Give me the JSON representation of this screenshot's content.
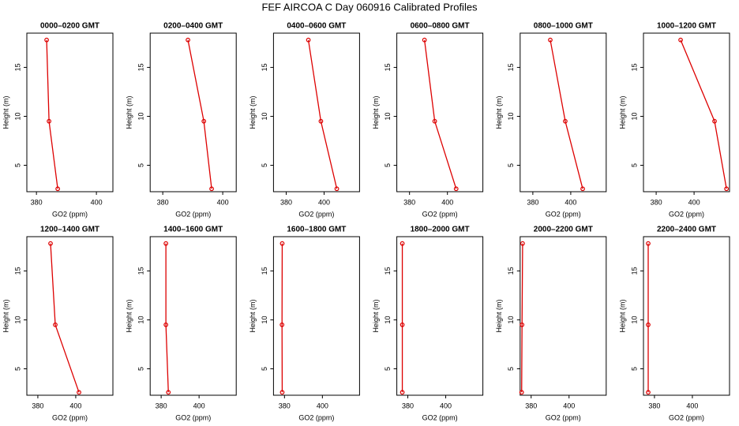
{
  "title": "FEF AIRCOA C  Day 060916  Calibrated Profiles",
  "chart_data": [
    {
      "type": "line",
      "title": "0000–0200 GMT",
      "xlabel": "GO2 (ppm)",
      "ylabel": "Height (m)",
      "x": [
        383.4,
        384.2,
        387.1
      ],
      "values": [
        17.8,
        9.5,
        2.6
      ],
      "color": "#dd0000",
      "xlim": [
        376.8,
        405.5
      ],
      "ylim": [
        2.3,
        18.5
      ],
      "xticks": [
        380,
        400
      ],
      "yticks": [
        5,
        10,
        15
      ]
    },
    {
      "type": "line",
      "title": "0200–0400 GMT",
      "xlabel": "GO2 (ppm)",
      "ylabel": "Height (m)",
      "x": [
        388.4,
        393.7,
        396.3
      ],
      "values": [
        17.8,
        9.5,
        2.6
      ],
      "color": "#dd0000",
      "xlim": [
        375.8,
        404.5
      ],
      "ylim": [
        2.3,
        18.5
      ],
      "xticks": [
        380,
        400
      ],
      "yticks": [
        5,
        10,
        15
      ]
    },
    {
      "type": "line",
      "title": "0400–0600 GMT",
      "xlabel": "GO2 (ppm)",
      "ylabel": "Height (m)",
      "x": [
        391.7,
        398.3,
        406.7
      ],
      "values": [
        17.8,
        9.5,
        2.6
      ],
      "color": "#dd0000",
      "xlim": [
        373.3,
        418.7
      ],
      "ylim": [
        2.3,
        18.5
      ],
      "xticks": [
        380,
        400
      ],
      "yticks": [
        5,
        10,
        15
      ]
    },
    {
      "type": "line",
      "title": "0600–0800 GMT",
      "xlabel": "GO2 (ppm)",
      "ylabel": "Height (m)",
      "x": [
        387.9,
        393.3,
        404.6
      ],
      "values": [
        17.8,
        9.5,
        2.6
      ],
      "color": "#dd0000",
      "xlim": [
        373.3,
        418.7
      ],
      "ylim": [
        2.3,
        18.5
      ],
      "xticks": [
        380,
        400
      ],
      "yticks": [
        5,
        10,
        15
      ]
    },
    {
      "type": "line",
      "title": "0800–1000 GMT",
      "xlabel": "GO2 (ppm)",
      "ylabel": "Height (m)",
      "x": [
        389.2,
        397.1,
        406.3
      ],
      "values": [
        17.8,
        9.5,
        2.6
      ],
      "color": "#dd0000",
      "xlim": [
        373.3,
        418.7
      ],
      "ylim": [
        2.3,
        18.5
      ],
      "xticks": [
        380,
        400
      ],
      "yticks": [
        5,
        10,
        15
      ]
    },
    {
      "type": "line",
      "title": "1000–1200 GMT",
      "xlabel": "GO2 (ppm)",
      "ylabel": "Height (m)",
      "x": [
        392.9,
        410.8,
        417.1
      ],
      "values": [
        17.8,
        9.5,
        2.6
      ],
      "color": "#dd0000",
      "xlim": [
        373.3,
        418.7
      ],
      "ylim": [
        2.3,
        18.5
      ],
      "xticks": [
        380,
        400
      ],
      "yticks": [
        5,
        10,
        15
      ]
    },
    {
      "type": "line",
      "title": "1200–1400 GMT",
      "xlabel": "GO2 (ppm)",
      "ylabel": "Height (m)",
      "x": [
        386.7,
        389.2,
        401.7
      ],
      "values": [
        17.8,
        9.5,
        2.6
      ],
      "color": "#dd0000",
      "xlim": [
        374.2,
        419.6
      ],
      "ylim": [
        2.3,
        18.5
      ],
      "xticks": [
        380,
        400
      ],
      "yticks": [
        5,
        10,
        15
      ]
    },
    {
      "type": "line",
      "title": "1400–1600 GMT",
      "xlabel": "GO2 (ppm)",
      "ylabel": "Height (m)",
      "x": [
        382.5,
        382.5,
        383.8
      ],
      "values": [
        17.8,
        9.5,
        2.6
      ],
      "color": "#dd0000",
      "xlim": [
        374.2,
        419.6
      ],
      "ylim": [
        2.3,
        18.5
      ],
      "xticks": [
        380,
        400
      ],
      "yticks": [
        5,
        10,
        15
      ]
    },
    {
      "type": "line",
      "title": "1600–1800 GMT",
      "xlabel": "GO2 (ppm)",
      "ylabel": "Height (m)",
      "x": [
        378.8,
        378.7,
        378.8
      ],
      "values": [
        17.8,
        9.5,
        2.6
      ],
      "color": "#dd0000",
      "xlim": [
        374.2,
        419.6
      ],
      "ylim": [
        2.3,
        18.5
      ],
      "xticks": [
        380,
        400
      ],
      "yticks": [
        5,
        10,
        15
      ]
    },
    {
      "type": "line",
      "title": "1800–2000 GMT",
      "xlabel": "GO2 (ppm)",
      "ylabel": "Height (m)",
      "x": [
        377.1,
        377.1,
        377.1
      ],
      "values": [
        17.8,
        9.5,
        2.6
      ],
      "color": "#dd0000",
      "xlim": [
        374.2,
        419.6
      ],
      "ylim": [
        2.3,
        18.5
      ],
      "xticks": [
        380,
        400
      ],
      "yticks": [
        5,
        10,
        15
      ]
    },
    {
      "type": "line",
      "title": "2000–2200 GMT",
      "xlabel": "GO2 (ppm)",
      "ylabel": "Height (m)",
      "x": [
        375.5,
        375.2,
        375.0
      ],
      "values": [
        17.8,
        9.5,
        2.6
      ],
      "color": "#dd0000",
      "xlim": [
        374.2,
        419.6
      ],
      "ylim": [
        2.3,
        18.5
      ],
      "xticks": [
        380,
        400
      ],
      "yticks": [
        5,
        10,
        15
      ]
    },
    {
      "type": "line",
      "title": "2200–2400 GMT",
      "xlabel": "GO2 (ppm)",
      "ylabel": "Height (m)",
      "x": [
        376.7,
        376.7,
        376.7
      ],
      "values": [
        17.8,
        9.5,
        2.6
      ],
      "color": "#dd0000",
      "xlim": [
        374.2,
        419.6
      ],
      "ylim": [
        2.3,
        18.5
      ],
      "xticks": [
        380,
        400
      ],
      "yticks": [
        5,
        10,
        15
      ]
    }
  ]
}
